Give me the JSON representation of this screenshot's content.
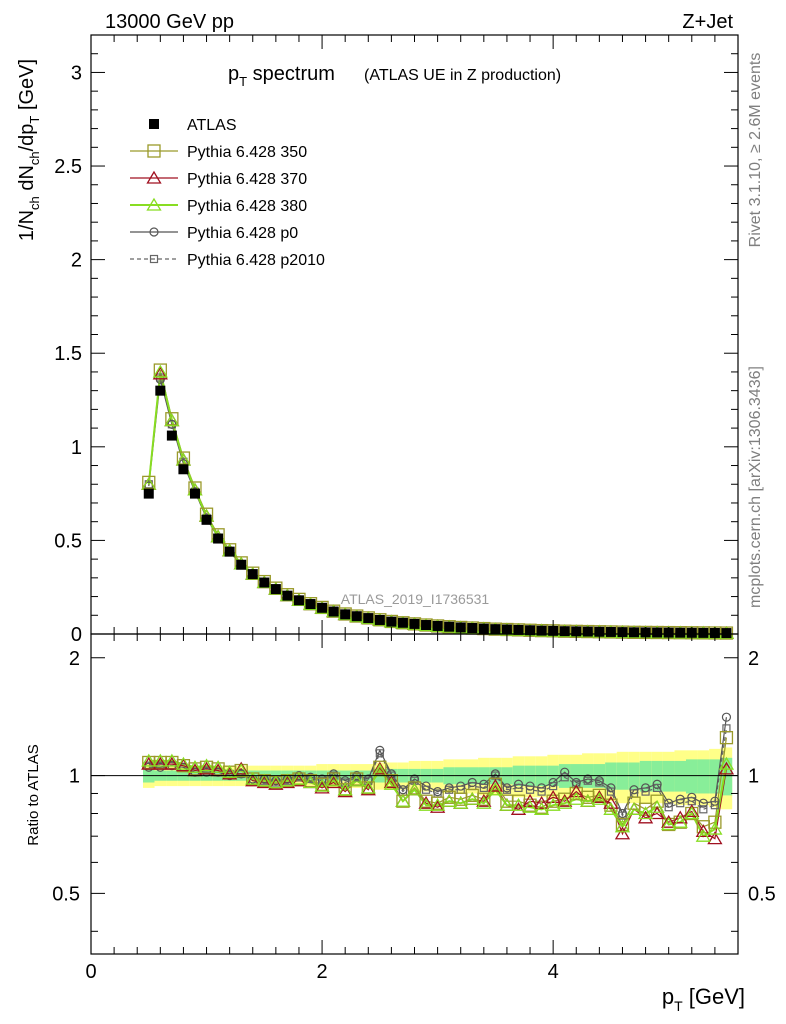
{
  "header": {
    "left": "13000 GeV pp",
    "right": "Z+Jet"
  },
  "side_labels": {
    "rivet": "Rivet 3.1.10, ≥ 2.6M events",
    "source": "mcplots.cern.ch [arXiv:1306.3436]"
  },
  "colors": {
    "atlas": "#000000",
    "p350": "#9a9a2a",
    "p370": "#a01020",
    "p380": "#88dd22",
    "p0": "#555555",
    "p2010": "#666666",
    "band_outer": "#ffff88",
    "band_inner": "#88ee99"
  },
  "chart_data": [
    {
      "type": "line",
      "title": "p_T spectrum",
      "title_main": "p",
      "title_sub": "T",
      "title_rest": " spectrum",
      "subtitle": "(ATLAS UE in Z production)",
      "watermark": "ATLAS_2019_I1736531",
      "ylabel": "1/N_ch dN_ch/dp_T [GeV]",
      "ylim": [
        0,
        3.2
      ],
      "xlim": [
        0,
        5.6
      ],
      "yticks": [
        "0",
        "0.5",
        "1",
        "1.5",
        "2",
        "2.5",
        "3"
      ],
      "x": [
        0.5,
        0.6,
        0.7,
        0.8,
        0.9,
        1.0,
        1.1,
        1.2,
        1.3,
        1.4,
        1.5,
        1.6,
        1.7,
        1.8,
        1.9,
        2.0,
        2.1,
        2.2,
        2.3,
        2.4,
        2.5,
        2.6,
        2.7,
        2.8,
        2.9,
        3.0,
        3.1,
        3.2,
        3.3,
        3.4,
        3.5,
        3.6,
        3.7,
        3.8,
        3.9,
        4.0,
        4.1,
        4.2,
        4.3,
        4.4,
        4.5,
        4.6,
        4.7,
        4.8,
        4.9,
        5.0,
        5.1,
        5.2,
        5.3,
        5.4,
        5.5
      ],
      "atlas": [
        0.75,
        1.3,
        1.06,
        0.88,
        0.75,
        0.61,
        0.51,
        0.44,
        0.37,
        0.32,
        0.275,
        0.24,
        0.205,
        0.18,
        0.16,
        0.14,
        0.12,
        0.105,
        0.095,
        0.085,
        0.075,
        0.066,
        0.06,
        0.054,
        0.048,
        0.043,
        0.039,
        0.035,
        0.032,
        0.029,
        0.026,
        0.024,
        0.022,
        0.02,
        0.018,
        0.017,
        0.015,
        0.014,
        0.013,
        0.012,
        0.011,
        0.01,
        0.009,
        0.0085,
        0.008,
        0.0075,
        0.007,
        0.0065,
        0.006,
        0.0055,
        0.005
      ],
      "series": [
        {
          "name": "ATLAS",
          "key": "atlas"
        },
        {
          "name": "Pythia 6.428 350",
          "key": "p350",
          "values": [
            0.81,
            1.41,
            1.15,
            0.94,
            0.78,
            0.64,
            0.53,
            0.45,
            0.38,
            0.325,
            0.28,
            0.245,
            0.21,
            0.185,
            0.162,
            0.142,
            0.122,
            0.107,
            0.096,
            0.086,
            0.076,
            0.067,
            0.06,
            0.054,
            0.048,
            0.043,
            0.039,
            0.035,
            0.032,
            0.029,
            0.026,
            0.024,
            0.022,
            0.02,
            0.018,
            0.017,
            0.015,
            0.014,
            0.013,
            0.012,
            0.011,
            0.01,
            0.009,
            0.0085,
            0.008,
            0.0075,
            0.007,
            0.0065,
            0.006,
            0.0055,
            0.005
          ]
        },
        {
          "name": "Pythia 6.428 370",
          "key": "p370",
          "values": [
            0.8,
            1.39,
            1.14,
            0.93,
            0.77,
            0.63,
            0.52,
            0.445,
            0.375,
            0.32,
            0.275,
            0.24,
            0.205,
            0.18,
            0.158,
            0.138,
            0.12,
            0.104,
            0.093,
            0.083,
            0.074,
            0.065,
            0.058,
            0.052,
            0.046,
            0.041,
            0.037,
            0.033,
            0.03,
            0.027,
            0.024,
            0.022,
            0.02,
            0.018,
            0.017,
            0.015,
            0.014,
            0.013,
            0.012,
            0.011,
            0.01,
            0.009,
            0.008,
            0.0075,
            0.007,
            0.0065,
            0.006,
            0.0055,
            0.005,
            0.0045,
            0.004
          ]
        },
        {
          "name": "Pythia 6.428 380",
          "key": "p380",
          "values": [
            0.8,
            1.4,
            1.14,
            0.93,
            0.77,
            0.63,
            0.52,
            0.445,
            0.375,
            0.32,
            0.275,
            0.24,
            0.205,
            0.18,
            0.158,
            0.138,
            0.12,
            0.104,
            0.093,
            0.083,
            0.074,
            0.065,
            0.058,
            0.052,
            0.046,
            0.041,
            0.037,
            0.033,
            0.03,
            0.027,
            0.024,
            0.022,
            0.02,
            0.018,
            0.017,
            0.015,
            0.014,
            0.013,
            0.012,
            0.011,
            0.01,
            0.009,
            0.008,
            0.0075,
            0.007,
            0.0065,
            0.006,
            0.0055,
            0.005,
            0.0045,
            0.004
          ]
        },
        {
          "name": "Pythia 6.428 p0",
          "key": "p0",
          "values": [
            0.79,
            1.36,
            1.12,
            0.91,
            0.76,
            0.62,
            0.515,
            0.44,
            0.37,
            0.315,
            0.27,
            0.235,
            0.2,
            0.178,
            0.156,
            0.137,
            0.119,
            0.104,
            0.093,
            0.083,
            0.074,
            0.065,
            0.058,
            0.052,
            0.046,
            0.041,
            0.037,
            0.033,
            0.03,
            0.027,
            0.024,
            0.022,
            0.02,
            0.018,
            0.017,
            0.015,
            0.014,
            0.013,
            0.012,
            0.011,
            0.01,
            0.009,
            0.008,
            0.0075,
            0.007,
            0.0065,
            0.006,
            0.0055,
            0.005,
            0.0045,
            0.004
          ]
        },
        {
          "name": "Pythia 6.428 p2010",
          "key": "p2010",
          "values": [
            0.8,
            1.37,
            1.12,
            0.92,
            0.76,
            0.62,
            0.515,
            0.44,
            0.37,
            0.315,
            0.27,
            0.235,
            0.2,
            0.178,
            0.156,
            0.137,
            0.119,
            0.104,
            0.093,
            0.083,
            0.074,
            0.065,
            0.058,
            0.052,
            0.046,
            0.041,
            0.037,
            0.033,
            0.03,
            0.027,
            0.024,
            0.022,
            0.02,
            0.018,
            0.017,
            0.015,
            0.014,
            0.013,
            0.012,
            0.011,
            0.01,
            0.009,
            0.008,
            0.0075,
            0.007,
            0.0065,
            0.006,
            0.0055,
            0.005,
            0.0045,
            0.004
          ]
        }
      ]
    },
    {
      "type": "line",
      "ylabel": "Ratio to ATLAS",
      "xlabel": "p_T [GeV]",
      "xlabel_main": "p",
      "xlabel_sub": "T",
      "xlabel_rest": " [GeV]",
      "ylim": [
        0.35,
        2.3
      ],
      "xlim": [
        0,
        5.6
      ],
      "yticks": [
        "0.5",
        "1",
        "2"
      ],
      "ytick_values": [
        0.5,
        1,
        2
      ],
      "xticks": [
        "0",
        "2",
        "4"
      ],
      "xtick_values": [
        0,
        2,
        4
      ],
      "x": [
        0.5,
        0.6,
        0.7,
        0.8,
        0.9,
        1.0,
        1.1,
        1.2,
        1.3,
        1.4,
        1.5,
        1.6,
        1.7,
        1.8,
        1.9,
        2.0,
        2.1,
        2.2,
        2.3,
        2.4,
        2.5,
        2.6,
        2.7,
        2.8,
        2.9,
        3.0,
        3.1,
        3.2,
        3.3,
        3.4,
        3.5,
        3.6,
        3.7,
        3.8,
        3.9,
        4.0,
        4.1,
        4.2,
        4.3,
        4.4,
        4.5,
        4.6,
        4.7,
        4.8,
        4.9,
        5.0,
        5.1,
        5.2,
        5.3,
        5.4,
        5.5
      ],
      "band_inner_half": [
        0.04,
        0.03,
        0.03,
        0.03,
        0.03,
        0.03,
        0.03,
        0.03,
        0.03,
        0.03,
        0.03,
        0.03,
        0.03,
        0.03,
        0.03,
        0.03,
        0.03,
        0.03,
        0.03,
        0.03,
        0.04,
        0.04,
        0.04,
        0.04,
        0.04,
        0.04,
        0.05,
        0.05,
        0.05,
        0.05,
        0.05,
        0.05,
        0.06,
        0.06,
        0.06,
        0.06,
        0.07,
        0.07,
        0.07,
        0.07,
        0.08,
        0.08,
        0.08,
        0.09,
        0.09,
        0.09,
        0.09,
        0.1,
        0.1,
        0.1,
        0.11
      ],
      "band_outer_half": [
        0.07,
        0.06,
        0.06,
        0.06,
        0.06,
        0.06,
        0.06,
        0.06,
        0.06,
        0.06,
        0.06,
        0.06,
        0.06,
        0.06,
        0.06,
        0.07,
        0.07,
        0.07,
        0.07,
        0.07,
        0.08,
        0.08,
        0.08,
        0.09,
        0.09,
        0.09,
        0.1,
        0.1,
        0.1,
        0.11,
        0.11,
        0.11,
        0.12,
        0.12,
        0.12,
        0.13,
        0.13,
        0.13,
        0.14,
        0.14,
        0.14,
        0.15,
        0.15,
        0.15,
        0.15,
        0.15,
        0.16,
        0.16,
        0.16,
        0.17,
        0.18
      ],
      "series": [
        {
          "name": "Pythia 6.428 350",
          "key": "p350",
          "values": [
            1.08,
            1.08,
            1.08,
            1.06,
            1.04,
            1.05,
            1.04,
            1.02,
            1.03,
            0.98,
            0.97,
            0.96,
            0.97,
            0.98,
            0.97,
            0.95,
            0.98,
            0.92,
            0.98,
            0.93,
            1.05,
            0.97,
            0.86,
            0.93,
            0.86,
            0.85,
            0.88,
            0.87,
            0.89,
            0.87,
            0.95,
            0.86,
            0.86,
            0.84,
            0.83,
            0.86,
            0.87,
            0.9,
            0.88,
            0.89,
            0.84,
            0.75,
            0.85,
            0.82,
            0.86,
            0.75,
            0.76,
            0.8,
            0.74,
            0.76,
            1.25
          ]
        },
        {
          "name": "Pythia 6.428 370",
          "key": "p370",
          "values": [
            1.07,
            1.07,
            1.07,
            1.06,
            1.03,
            1.04,
            1.03,
            1.01,
            1.04,
            0.97,
            0.96,
            0.95,
            0.96,
            0.97,
            0.96,
            0.93,
            0.96,
            0.91,
            0.97,
            0.92,
            1.04,
            0.96,
            0.86,
            0.92,
            0.85,
            0.83,
            0.86,
            0.85,
            0.87,
            0.86,
            0.94,
            0.84,
            0.82,
            0.86,
            0.85,
            0.88,
            0.86,
            0.91,
            0.86,
            0.88,
            0.85,
            0.71,
            0.82,
            0.78,
            0.8,
            0.76,
            0.78,
            0.81,
            0.72,
            0.69,
            1.04
          ]
        },
        {
          "name": "Pythia 6.428 380",
          "key": "p380",
          "values": [
            1.09,
            1.09,
            1.09,
            1.07,
            1.05,
            1.06,
            1.05,
            1.02,
            1.03,
            0.98,
            0.97,
            0.96,
            0.97,
            0.98,
            0.96,
            0.94,
            0.97,
            0.92,
            0.97,
            0.93,
            1.03,
            0.95,
            0.86,
            0.92,
            0.84,
            0.84,
            0.86,
            0.85,
            0.87,
            0.85,
            0.92,
            0.84,
            0.84,
            0.83,
            0.82,
            0.84,
            0.85,
            0.87,
            0.86,
            0.87,
            0.82,
            0.74,
            0.82,
            0.8,
            0.83,
            0.75,
            0.76,
            0.8,
            0.7,
            0.73,
            1.07
          ]
        },
        {
          "name": "Pythia 6.428 p0",
          "key": "p0",
          "values": [
            1.05,
            1.05,
            1.06,
            1.05,
            1.02,
            1.02,
            1.02,
            1.0,
            1.01,
            0.98,
            0.98,
            0.97,
            0.98,
            1.0,
            0.99,
            0.98,
            1.01,
            0.97,
            1.0,
            0.98,
            1.16,
            1.01,
            0.92,
            0.98,
            0.94,
            0.91,
            0.93,
            0.94,
            0.96,
            0.95,
            1.01,
            0.93,
            0.95,
            0.94,
            0.93,
            0.96,
            1.02,
            0.96,
            0.98,
            0.97,
            0.93,
            0.8,
            0.92,
            0.93,
            0.95,
            0.85,
            0.87,
            0.88,
            0.85,
            0.86,
            1.41
          ]
        },
        {
          "name": "Pythia 6.428 p2010",
          "key": "p2010",
          "values": [
            1.06,
            1.06,
            1.06,
            1.05,
            1.02,
            1.03,
            1.02,
            1.01,
            1.01,
            0.97,
            0.97,
            0.96,
            0.97,
            0.99,
            0.98,
            0.97,
            1.0,
            0.96,
            0.99,
            0.97,
            1.14,
            1.0,
            0.91,
            0.97,
            0.92,
            0.9,
            0.92,
            0.92,
            0.94,
            0.93,
            1.0,
            0.92,
            0.93,
            0.92,
            0.91,
            0.94,
            0.99,
            0.95,
            0.97,
            0.96,
            0.91,
            0.79,
            0.9,
            0.91,
            0.93,
            0.83,
            0.85,
            0.86,
            0.82,
            0.84,
            1.32
          ]
        }
      ]
    }
  ]
}
